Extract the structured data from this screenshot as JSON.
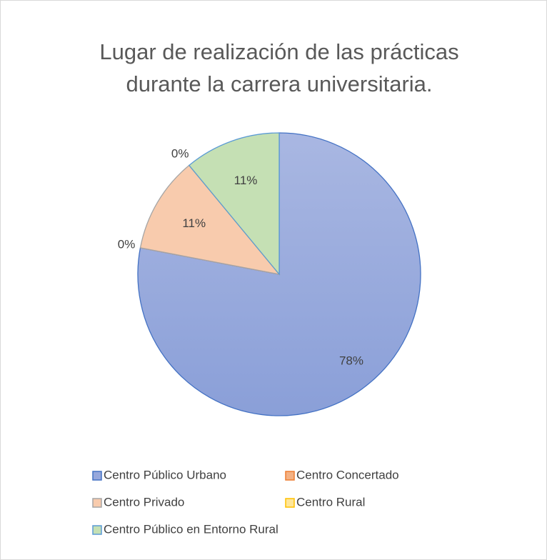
{
  "chart_data": {
    "type": "pie",
    "title": [
      "Lugar de realización de las prácticas",
      "durante la carrera universitaria."
    ],
    "categories": [
      "Centro Público Urbano",
      "Centro Concertado",
      "Centro Privado",
      "Centro Rural",
      "Centro Público en Entorno Rural"
    ],
    "values": [
      78,
      0,
      11,
      0,
      11
    ],
    "value_labels": [
      "78%",
      "0%",
      "11%",
      "0%",
      "11%"
    ],
    "colors": [
      "#97a8dc",
      "#f4b183",
      "#f8cbad",
      "#ffe699",
      "#c5e0b4"
    ],
    "legend": "bottom"
  }
}
